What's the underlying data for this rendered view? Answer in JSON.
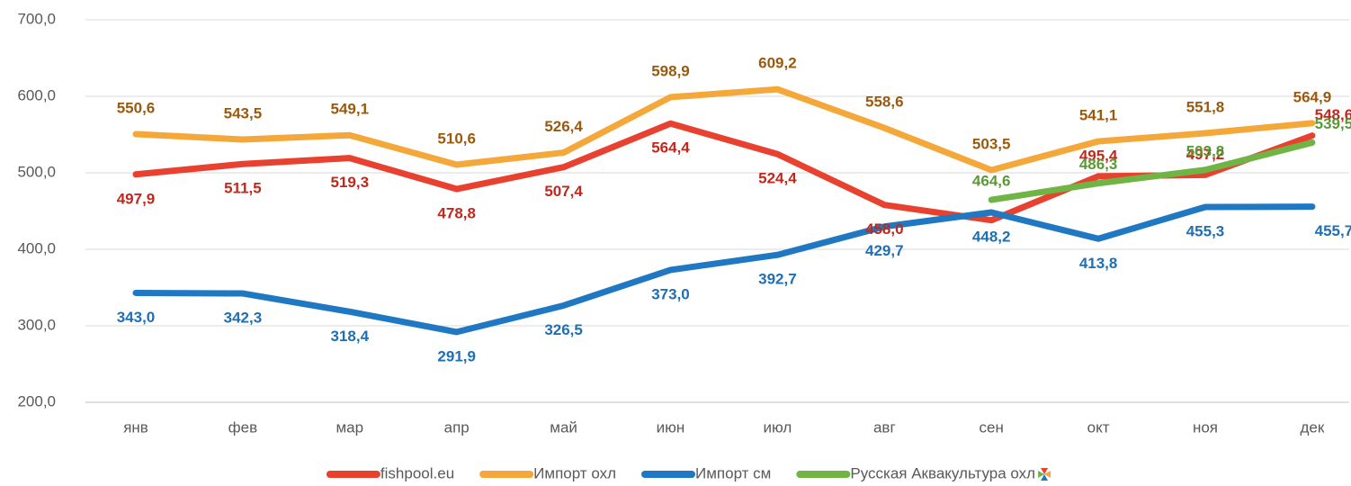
{
  "chart_data": {
    "type": "line",
    "categories": [
      "янв",
      "фев",
      "мар",
      "апр",
      "май",
      "июн",
      "июл",
      "авг",
      "сен",
      "окт",
      "ноя",
      "дек"
    ],
    "ylim": [
      200,
      700
    ],
    "yticks": [
      {
        "value": 200,
        "label": "200,0"
      },
      {
        "value": 300,
        "label": "300,0"
      },
      {
        "value": 400,
        "label": "400,0"
      },
      {
        "value": 500,
        "label": "500,0"
      },
      {
        "value": 600,
        "label": "600,0"
      },
      {
        "value": 700,
        "label": "700,0"
      }
    ],
    "grid": true,
    "legend": "bottom",
    "series": [
      {
        "name": "fishpool.eu",
        "color": "#e8412f",
        "label_color": "#c0281c",
        "values": [
          497.9,
          511.5,
          519.3,
          478.8,
          507.4,
          564.4,
          524.4,
          458.0,
          438,
          495.4,
          497.2,
          548.6
        ],
        "value_labels": [
          "497,9",
          "511,5",
          "519,3",
          "478,8",
          "507,4",
          "564,4",
          "524,4",
          "458,0",
          null,
          "495,4",
          "497,2",
          "548,6"
        ]
      },
      {
        "name": "Импорт охл",
        "color": "#f4a83a",
        "label_color": "#9a5a0e",
        "values": [
          550.6,
          543.5,
          549.1,
          510.6,
          526.4,
          598.9,
          609.2,
          558.6,
          503.5,
          541.1,
          551.8,
          564.9
        ],
        "value_labels": [
          "550,6",
          "543,5",
          "549,1",
          "510,6",
          "526,4",
          "598,9",
          "609,2",
          "558,6",
          "503,5",
          "541,1",
          "551,8",
          "564,9"
        ]
      },
      {
        "name": "Импорт см",
        "color": "#1f78c1",
        "label_color": "#1f6fb5",
        "values": [
          343.0,
          342.3,
          318.4,
          291.9,
          326.5,
          373.0,
          392.7,
          429.7,
          448.2,
          413.8,
          455.3,
          455.7
        ],
        "value_labels": [
          "343,0",
          "342,3",
          "318,4",
          "291,9",
          "326,5",
          "373,0",
          "392,7",
          "429,7",
          "448,2",
          "413,8",
          "455,3",
          "455,7"
        ]
      },
      {
        "name": "Русская Аквакультура охл",
        "color": "#70b446",
        "label_color": "#5a9a34",
        "values": [
          null,
          null,
          null,
          null,
          null,
          null,
          null,
          null,
          464.6,
          486.3,
          503.8,
          539.5
        ],
        "value_labels": [
          null,
          null,
          null,
          null,
          null,
          null,
          null,
          null,
          "464,6",
          "486,3",
          "503,8",
          "539,5"
        ]
      }
    ]
  }
}
